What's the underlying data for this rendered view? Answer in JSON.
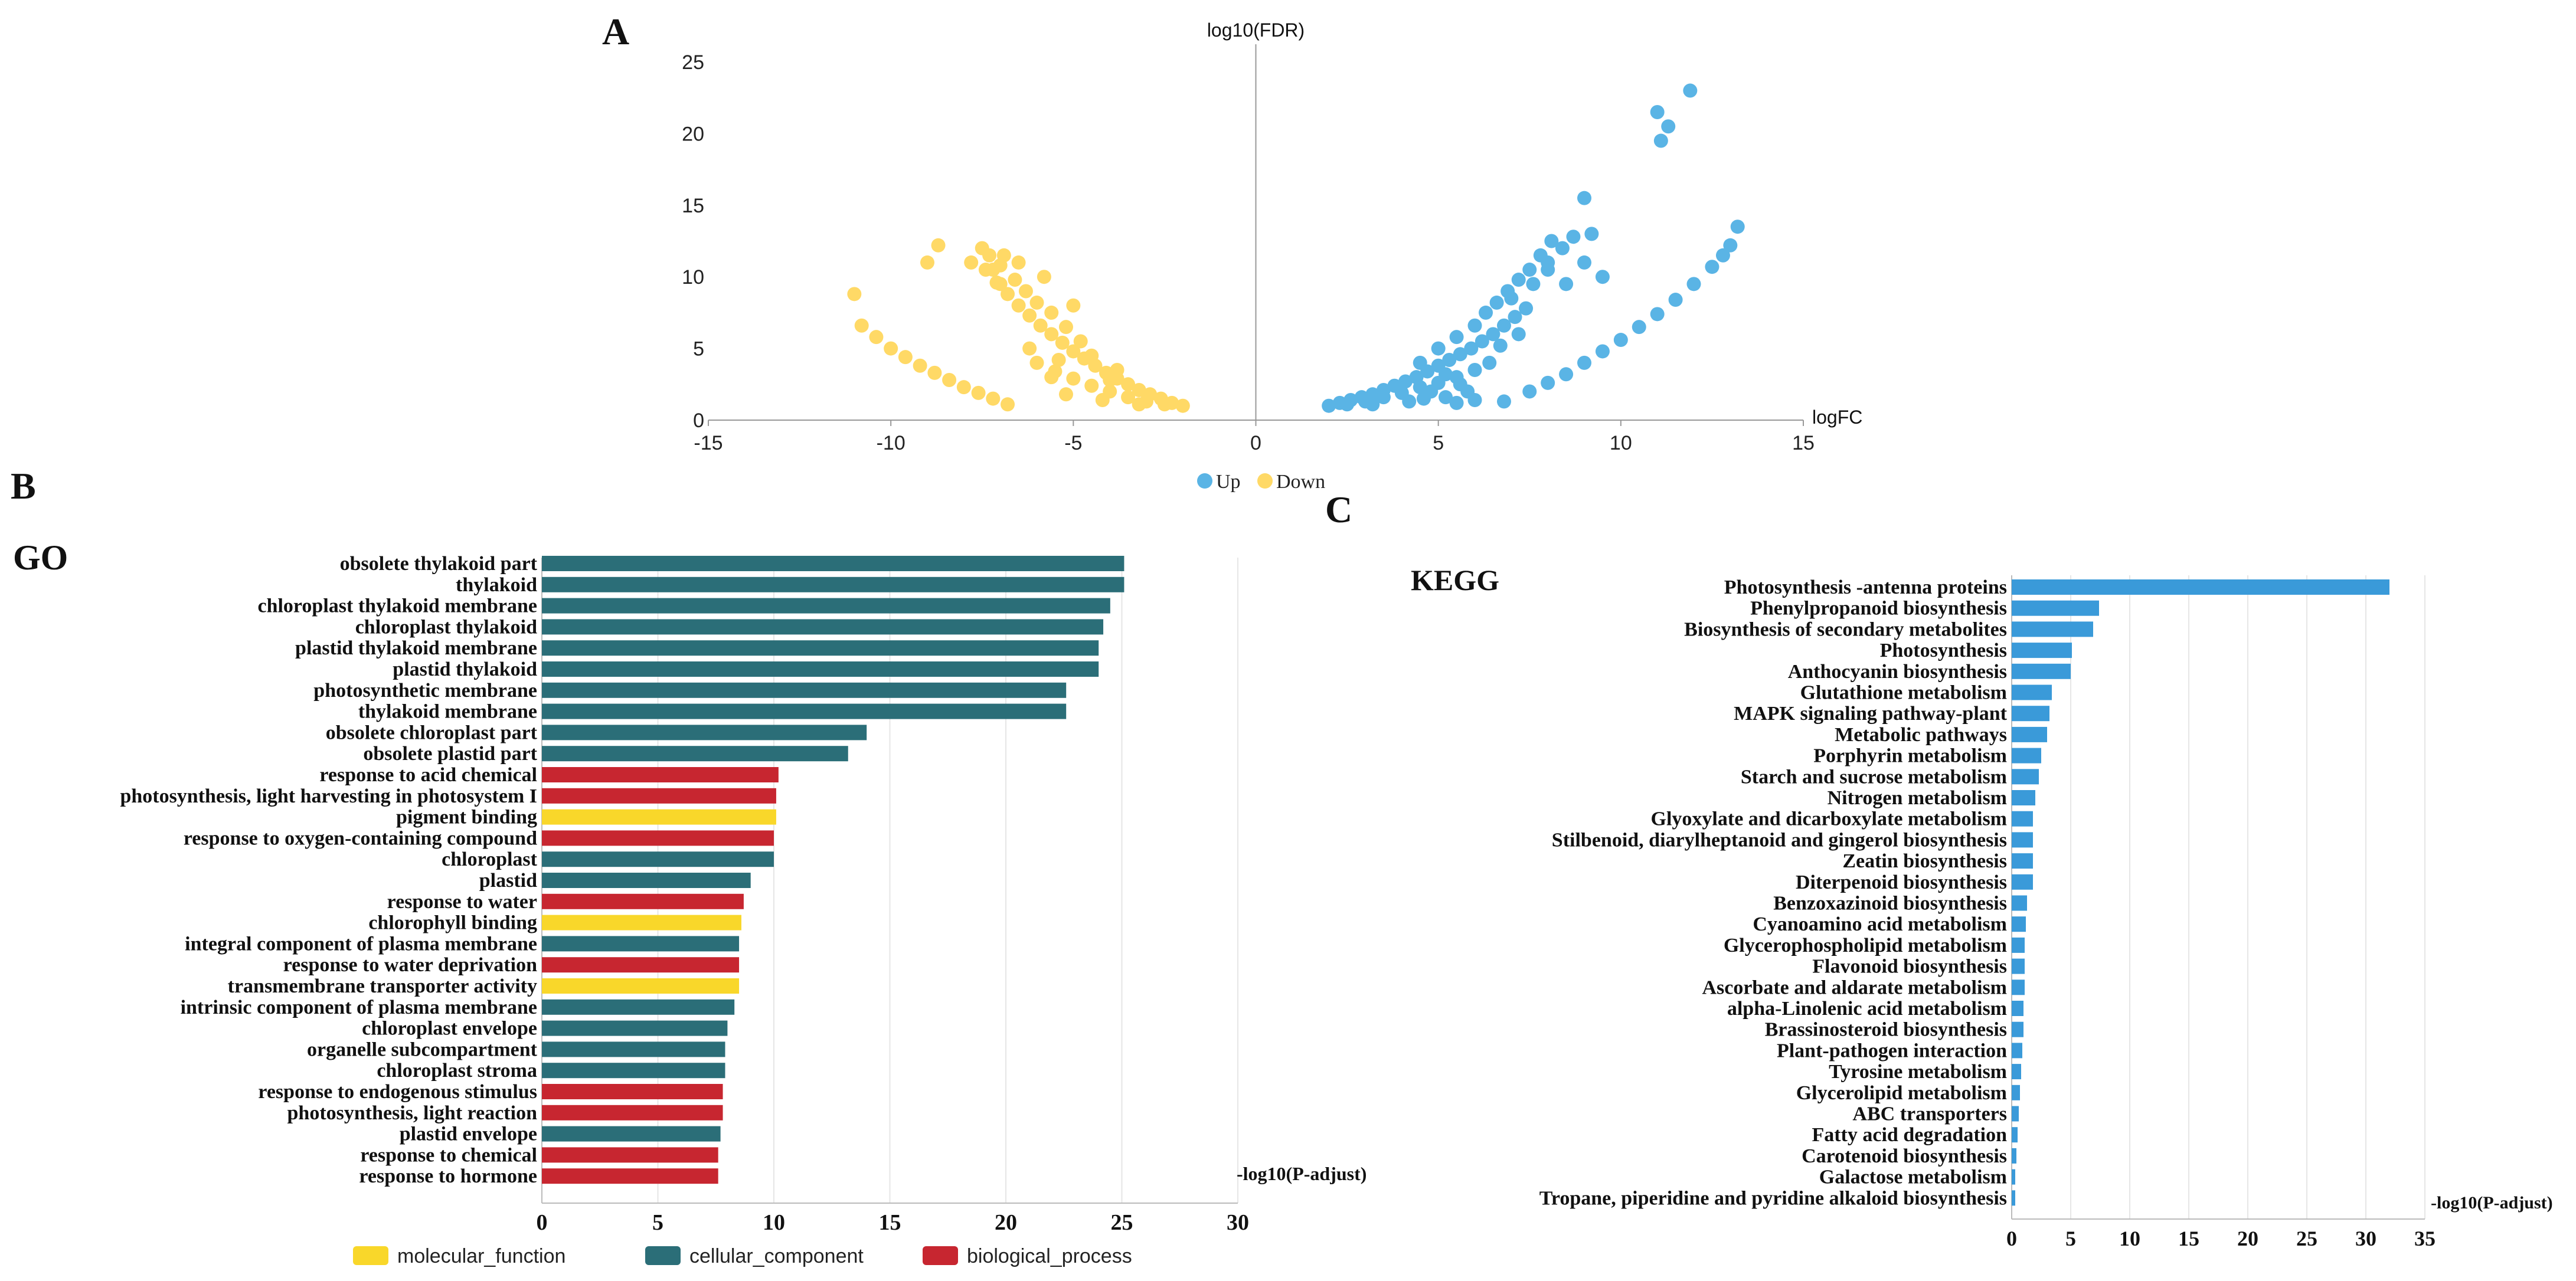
{
  "chart_data": [
    {
      "panel": "A",
      "type": "scatter",
      "title": "",
      "xlabel": "logFC",
      "ylabel": "log10(FDR)",
      "xlim": [
        -15,
        15
      ],
      "ylim": [
        0,
        25
      ],
      "xticks": [
        -15,
        -10,
        -5,
        0,
        5,
        10,
        15
      ],
      "yticks": [
        0,
        5,
        10,
        15,
        20,
        25
      ],
      "legend": [
        "Up",
        "Down"
      ],
      "colors": {
        "Up": "#5ab4e5",
        "Down": "#ffd966"
      },
      "series": [
        {
          "name": "Up",
          "points": [
            [
              2.0,
              1.0
            ],
            [
              2.3,
              1.2
            ],
            [
              2.6,
              1.4
            ],
            [
              2.9,
              1.6
            ],
            [
              3.2,
              1.8
            ],
            [
              3.5,
              2.1
            ],
            [
              3.8,
              2.4
            ],
            [
              4.1,
              2.7
            ],
            [
              4.4,
              3.0
            ],
            [
              4.7,
              3.4
            ],
            [
              5.0,
              3.8
            ],
            [
              5.3,
              4.2
            ],
            [
              5.6,
              4.6
            ],
            [
              5.9,
              5.0
            ],
            [
              6.2,
              5.5
            ],
            [
              6.5,
              6.0
            ],
            [
              6.8,
              6.6
            ],
            [
              7.1,
              7.2
            ],
            [
              7.4,
              7.8
            ],
            [
              2.5,
              1.1
            ],
            [
              3.0,
              1.3
            ],
            [
              3.5,
              1.6
            ],
            [
              4.0,
              1.9
            ],
            [
              4.5,
              2.3
            ],
            [
              5.0,
              2.6
            ],
            [
              5.5,
              3.0
            ],
            [
              6.0,
              3.5
            ],
            [
              3.2,
              1.1
            ],
            [
              4.2,
              1.3
            ],
            [
              5.2,
              1.6
            ],
            [
              5.8,
              2.0
            ],
            [
              4.5,
              4.0
            ],
            [
              5.0,
              5.0
            ],
            [
              5.5,
              5.8
            ],
            [
              6.0,
              6.6
            ],
            [
              6.3,
              7.5
            ],
            [
              6.6,
              8.2
            ],
            [
              6.9,
              9.0
            ],
            [
              7.2,
              9.8
            ],
            [
              7.5,
              10.5
            ],
            [
              7.8,
              11.5
            ],
            [
              8.1,
              12.5
            ],
            [
              8.4,
              12.0
            ],
            [
              8.7,
              12.8
            ],
            [
              7.0,
              8.5
            ],
            [
              7.6,
              9.5
            ],
            [
              8.0,
              11.0
            ],
            [
              5.2,
              3.2
            ],
            [
              4.8,
              2.0
            ],
            [
              6.4,
              4.0
            ],
            [
              5.6,
              2.5
            ],
            [
              4.6,
              1.5
            ],
            [
              7.2,
              6.0
            ],
            [
              6.7,
              5.2
            ],
            [
              6.0,
              1.4
            ],
            [
              5.5,
              1.2
            ],
            [
              9.0,
              15.5
            ],
            [
              9.2,
              13.0
            ],
            [
              9.5,
              10.0
            ],
            [
              9.0,
              11.0
            ],
            [
              8.5,
              9.5
            ],
            [
              8.0,
              10.5
            ],
            [
              6.8,
              1.3
            ],
            [
              7.5,
              2.0
            ],
            [
              8.0,
              2.6
            ],
            [
              8.5,
              3.2
            ],
            [
              9.0,
              4.0
            ],
            [
              9.5,
              4.8
            ],
            [
              10.0,
              5.6
            ],
            [
              10.5,
              6.5
            ],
            [
              11.0,
              7.4
            ],
            [
              11.5,
              8.4
            ],
            [
              12.0,
              9.5
            ],
            [
              12.5,
              10.7
            ],
            [
              12.8,
              11.5
            ],
            [
              13.0,
              12.2
            ],
            [
              13.2,
              13.5
            ],
            [
              11.0,
              21.5
            ],
            [
              11.3,
              20.5
            ],
            [
              11.1,
              19.5
            ],
            [
              11.9,
              23.0
            ]
          ]
        },
        {
          "name": "Down",
          "points": [
            [
              -2.0,
              1.0
            ],
            [
              -2.3,
              1.2
            ],
            [
              -2.6,
              1.5
            ],
            [
              -2.9,
              1.8
            ],
            [
              -3.2,
              2.1
            ],
            [
              -3.5,
              2.5
            ],
            [
              -3.8,
              2.9
            ],
            [
              -4.1,
              3.3
            ],
            [
              -4.4,
              3.8
            ],
            [
              -4.7,
              4.3
            ],
            [
              -5.0,
              4.8
            ],
            [
              -5.3,
              5.4
            ],
            [
              -5.6,
              6.0
            ],
            [
              -5.9,
              6.6
            ],
            [
              -6.2,
              7.3
            ],
            [
              -6.5,
              8.0
            ],
            [
              -6.8,
              8.8
            ],
            [
              -7.1,
              9.6
            ],
            [
              -7.4,
              10.5
            ],
            [
              -2.5,
              1.1
            ],
            [
              -3.0,
              1.3
            ],
            [
              -3.5,
              1.6
            ],
            [
              -4.0,
              2.0
            ],
            [
              -4.5,
              2.4
            ],
            [
              -5.0,
              2.9
            ],
            [
              -5.5,
              3.4
            ],
            [
              -6.0,
              4.0
            ],
            [
              -3.2,
              1.1
            ],
            [
              -4.2,
              1.4
            ],
            [
              -5.2,
              1.8
            ],
            [
              -4.8,
              5.5
            ],
            [
              -5.2,
              6.5
            ],
            [
              -5.6,
              7.5
            ],
            [
              -6.0,
              8.2
            ],
            [
              -6.3,
              9.0
            ],
            [
              -6.6,
              9.8
            ],
            [
              -7.0,
              10.8
            ],
            [
              -7.3,
              11.5
            ],
            [
              -5.0,
              8.0
            ],
            [
              -5.8,
              10.0
            ],
            [
              -6.5,
              11.0
            ],
            [
              -6.9,
              11.5
            ],
            [
              -4.5,
              4.5
            ],
            [
              -3.8,
              3.5
            ],
            [
              -5.4,
              4.2
            ],
            [
              -6.2,
              5.0
            ],
            [
              -4.0,
              2.8
            ],
            [
              -5.6,
              3.0
            ],
            [
              -6.8,
              1.1
            ],
            [
              -7.2,
              1.5
            ],
            [
              -7.6,
              1.9
            ],
            [
              -8.0,
              2.3
            ],
            [
              -8.4,
              2.8
            ],
            [
              -8.8,
              3.3
            ],
            [
              -9.2,
              3.8
            ],
            [
              -9.6,
              4.4
            ],
            [
              -10.0,
              5.0
            ],
            [
              -10.4,
              5.8
            ],
            [
              -10.8,
              6.6
            ],
            [
              -11.0,
              8.8
            ],
            [
              -9.0,
              11.0
            ],
            [
              -8.7,
              12.2
            ],
            [
              -7.5,
              12.0
            ],
            [
              -7.2,
              10.5
            ],
            [
              -7.8,
              11.0
            ],
            [
              -7.0,
              9.5
            ]
          ]
        }
      ]
    },
    {
      "panel": "B",
      "type": "bar",
      "orientation": "horizontal",
      "title": "GO",
      "xlabel": "-log10(P-adjust)",
      "xlim": [
        0,
        30
      ],
      "xticks": [
        0,
        5,
        10,
        15,
        20,
        25,
        30
      ],
      "legend": [
        "molecular_function",
        "cellular_component",
        "biological_process"
      ],
      "colors": {
        "molecular_function": "#f9d72a",
        "cellular_component": "#2b6e78",
        "biological_process": "#c72630"
      },
      "bars": [
        {
          "label": "obsolete thylakoid part",
          "value": 25.1,
          "group": "cellular_component"
        },
        {
          "label": "thylakoid",
          "value": 25.1,
          "group": "cellular_component"
        },
        {
          "label": "chloroplast thylakoid membrane",
          "value": 24.5,
          "group": "cellular_component"
        },
        {
          "label": "chloroplast thylakoid",
          "value": 24.2,
          "group": "cellular_component"
        },
        {
          "label": "plastid thylakoid membrane",
          "value": 24.0,
          "group": "cellular_component"
        },
        {
          "label": "plastid thylakoid",
          "value": 24.0,
          "group": "cellular_component"
        },
        {
          "label": "photosynthetic membrane",
          "value": 22.6,
          "group": "cellular_component"
        },
        {
          "label": "thylakoid membrane",
          "value": 22.6,
          "group": "cellular_component"
        },
        {
          "label": "obsolete chloroplast part",
          "value": 14.0,
          "group": "cellular_component"
        },
        {
          "label": "obsolete plastid part",
          "value": 13.2,
          "group": "cellular_component"
        },
        {
          "label": "response to acid chemical",
          "value": 10.2,
          "group": "biological_process"
        },
        {
          "label": "photosynthesis, light harvesting in photosystem I",
          "value": 10.1,
          "group": "biological_process"
        },
        {
          "label": "pigment binding",
          "value": 10.1,
          "group": "molecular_function"
        },
        {
          "label": "response to oxygen-containing compound",
          "value": 10.0,
          "group": "biological_process"
        },
        {
          "label": "chloroplast",
          "value": 10.0,
          "group": "cellular_component"
        },
        {
          "label": "plastid",
          "value": 9.0,
          "group": "cellular_component"
        },
        {
          "label": "response to water",
          "value": 8.7,
          "group": "biological_process"
        },
        {
          "label": "chlorophyll binding",
          "value": 8.6,
          "group": "molecular_function"
        },
        {
          "label": "integral component of plasma membrane",
          "value": 8.5,
          "group": "cellular_component"
        },
        {
          "label": "response to water deprivation",
          "value": 8.5,
          "group": "biological_process"
        },
        {
          "label": "transmembrane transporter activity",
          "value": 8.5,
          "group": "molecular_function"
        },
        {
          "label": "intrinsic component of plasma membrane",
          "value": 8.3,
          "group": "cellular_component"
        },
        {
          "label": "chloroplast envelope",
          "value": 8.0,
          "group": "cellular_component"
        },
        {
          "label": "organelle subcompartment",
          "value": 7.9,
          "group": "cellular_component"
        },
        {
          "label": "chloroplast stroma",
          "value": 7.9,
          "group": "cellular_component"
        },
        {
          "label": "response to endogenous stimulus",
          "value": 7.8,
          "group": "biological_process"
        },
        {
          "label": "photosynthesis, light reaction",
          "value": 7.8,
          "group": "biological_process"
        },
        {
          "label": "plastid envelope",
          "value": 7.7,
          "group": "cellular_component"
        },
        {
          "label": "response to chemical",
          "value": 7.6,
          "group": "biological_process"
        },
        {
          "label": "response to hormone",
          "value": 7.6,
          "group": "biological_process"
        }
      ]
    },
    {
      "panel": "C",
      "type": "bar",
      "orientation": "horizontal",
      "title": "KEGG",
      "xlabel": "-log10(P-adjust)",
      "xlim": [
        0,
        35
      ],
      "xticks": [
        0,
        5,
        10,
        15,
        20,
        25,
        30,
        35
      ],
      "colors": {
        "bar": "#3a9ad9"
      },
      "bars": [
        {
          "label": "Photosynthesis -antenna proteins",
          "value": 32.0
        },
        {
          "label": "Phenylpropanoid biosynthesis",
          "value": 7.4
        },
        {
          "label": "Biosynthesis of secondary metabolites",
          "value": 6.9
        },
        {
          "label": "Photosynthesis",
          "value": 5.1
        },
        {
          "label": "Anthocyanin biosynthesis",
          "value": 5.0
        },
        {
          "label": "Glutathione metabolism",
          "value": 3.4
        },
        {
          "label": "MAPK signaling pathway-plant",
          "value": 3.2
        },
        {
          "label": "Metabolic pathways",
          "value": 3.0
        },
        {
          "label": "Porphyrin metabolism",
          "value": 2.5
        },
        {
          "label": "Starch and sucrose metabolism",
          "value": 2.3
        },
        {
          "label": "Nitrogen metabolism",
          "value": 2.0
        },
        {
          "label": "Glyoxylate and dicarboxylate metabolism",
          "value": 1.8
        },
        {
          "label": "Stilbenoid, diarylheptanoid and gingerol biosynthesis",
          "value": 1.8
        },
        {
          "label": "Zeatin biosynthesis",
          "value": 1.8
        },
        {
          "label": "Diterpenoid biosynthesis",
          "value": 1.8
        },
        {
          "label": "Benzoxazinoid biosynthesis",
          "value": 1.3
        },
        {
          "label": "Cyanoamino acid metabolism",
          "value": 1.2
        },
        {
          "label": "Glycerophospholipid metabolism",
          "value": 1.1
        },
        {
          "label": "Flavonoid biosynthesis",
          "value": 1.1
        },
        {
          "label": "Ascorbate and aldarate metabolism",
          "value": 1.1
        },
        {
          "label": "alpha-Linolenic acid metabolism",
          "value": 1.0
        },
        {
          "label": "Brassinosteroid biosynthesis",
          "value": 1.0
        },
        {
          "label": "Plant-pathogen interaction",
          "value": 0.9
        },
        {
          "label": "Tyrosine metabolism",
          "value": 0.8
        },
        {
          "label": "Glycerolipid metabolism",
          "value": 0.7
        },
        {
          "label": "ABC transporters",
          "value": 0.6
        },
        {
          "label": "Fatty acid degradation",
          "value": 0.5
        },
        {
          "label": "Carotenoid biosynthesis",
          "value": 0.4
        },
        {
          "label": "Galactose metabolism",
          "value": 0.3
        },
        {
          "label": "Tropane, piperidine and pyridine alkaloid biosynthesis",
          "value": 0.3
        }
      ]
    }
  ]
}
